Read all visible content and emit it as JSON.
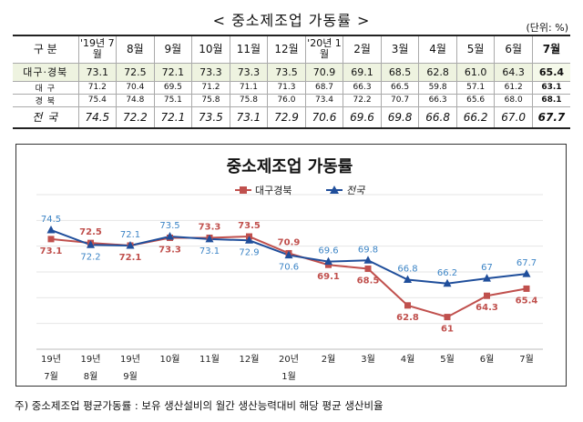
{
  "table": {
    "title": "< 중소제조업 가동률 >",
    "unit": "(단위: %)",
    "header": [
      "구 분",
      "'19년 7월",
      "8월",
      "9월",
      "10월",
      "11월",
      "12월",
      "'20년 1월",
      "2월",
      "3월",
      "4월",
      "5월",
      "6월",
      "7월"
    ],
    "rows": [
      {
        "label": "대구·경북",
        "values": [
          "73.1",
          "72.5",
          "72.1",
          "73.3",
          "73.3",
          "73.5",
          "70.9",
          "69.1",
          "68.5",
          "62.8",
          "61.0",
          "64.3",
          "65.4"
        ]
      },
      {
        "label": "대 구",
        "values": [
          "71.2",
          "70.4",
          "69.5",
          "71.2",
          "71.1",
          "71.3",
          "68.7",
          "66.3",
          "66.5",
          "59.8",
          "57.1",
          "61.2",
          "63.1"
        ]
      },
      {
        "label": "경 북",
        "values": [
          "75.4",
          "74.8",
          "75.1",
          "75.8",
          "75.8",
          "76.0",
          "73.4",
          "72.2",
          "70.7",
          "66.3",
          "65.6",
          "68.0",
          "68.1"
        ]
      },
      {
        "label": "전 국",
        "values": [
          "74.5",
          "72.2",
          "72.1",
          "73.5",
          "73.1",
          "72.9",
          "70.6",
          "69.6",
          "69.8",
          "66.8",
          "66.2",
          "67.0",
          "67.7"
        ]
      }
    ]
  },
  "chart_data": {
    "type": "line",
    "title": "중소제조업 가동률",
    "x_ticks": [
      [
        "19년",
        "7월"
      ],
      [
        "19년",
        "8월"
      ],
      [
        "19년",
        "9월"
      ],
      [
        "10월"
      ],
      [
        "11월"
      ],
      [
        "12월"
      ],
      [
        "20년",
        "1월"
      ],
      [
        "2월"
      ],
      [
        "3월"
      ],
      [
        "4월"
      ],
      [
        "5월"
      ],
      [
        "6월"
      ],
      [
        "7월"
      ]
    ],
    "series": [
      {
        "name": "대구경북",
        "color": "#c0504d",
        "marker": "square",
        "values": [
          73.1,
          72.5,
          72.1,
          73.3,
          73.3,
          73.5,
          70.9,
          69.1,
          68.5,
          62.8,
          61.0,
          64.3,
          65.4
        ]
      },
      {
        "name": "전국",
        "color": "#1f4e9b",
        "label_color": "#3d85c6",
        "marker": "triangle",
        "values": [
          74.5,
          72.2,
          72.1,
          73.5,
          73.1,
          72.9,
          70.6,
          69.6,
          69.8,
          66.8,
          66.2,
          67.0,
          67.7
        ]
      }
    ],
    "ylim": [
      56,
      80
    ],
    "grid": true,
    "legend_position": "top"
  },
  "footnote": "주) 중소제조업 평균가동률 : 보유 생산설비의 월간 생산능력대비 해당 평균 생산비율"
}
